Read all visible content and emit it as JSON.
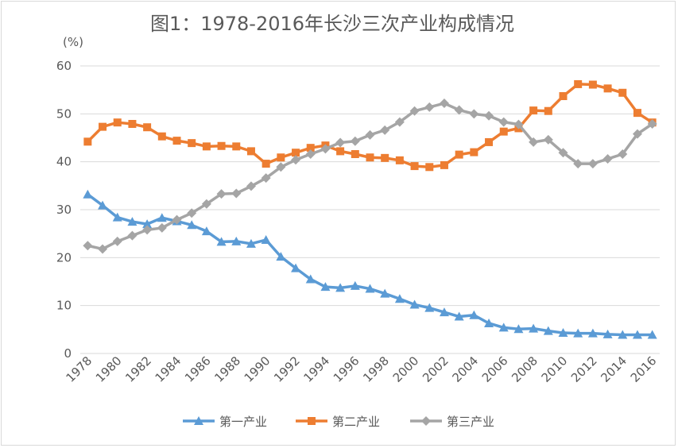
{
  "chart_data": {
    "type": "line",
    "title": "图1：1978-2016年长沙三次产业构成情况",
    "ylabel": "(%)",
    "xlabel": "",
    "ylim": [
      0,
      60
    ],
    "yticks": [
      0,
      10,
      20,
      30,
      40,
      50,
      60
    ],
    "grid": true,
    "legend_position": "bottom",
    "x": [
      1978,
      1979,
      1980,
      1981,
      1982,
      1983,
      1984,
      1985,
      1986,
      1987,
      1988,
      1989,
      1990,
      1991,
      1992,
      1993,
      1994,
      1995,
      1996,
      1997,
      1998,
      1999,
      2000,
      2001,
      2002,
      2003,
      2004,
      2005,
      2006,
      2007,
      2008,
      2009,
      2010,
      2011,
      2012,
      2013,
      2014,
      2015,
      2016
    ],
    "xtick_labels": [
      "1978",
      "1980",
      "1982",
      "1984",
      "1986",
      "1988",
      "1990",
      "1992",
      "1994",
      "1996",
      "1998",
      "2000",
      "2002",
      "2004",
      "2006",
      "2008",
      "2010",
      "2012",
      "2014",
      "2016"
    ],
    "series": [
      {
        "name": "第一产业",
        "color": "#5b9bd5",
        "marker": "triangle",
        "values": [
          33.2,
          30.9,
          28.4,
          27.5,
          27.0,
          28.3,
          27.6,
          26.8,
          25.5,
          23.3,
          23.4,
          22.9,
          23.7,
          20.2,
          17.8,
          15.5,
          13.9,
          13.7,
          14.1,
          13.5,
          12.5,
          11.4,
          10.2,
          9.5,
          8.6,
          7.7,
          8.0,
          6.3,
          5.4,
          5.1,
          5.2,
          4.7,
          4.3,
          4.2,
          4.2,
          4.0,
          3.9,
          3.9,
          3.9
        ]
      },
      {
        "name": "第二产业",
        "color": "#ed7d31",
        "marker": "square",
        "values": [
          44.2,
          47.3,
          48.2,
          47.9,
          47.2,
          45.3,
          44.4,
          43.9,
          43.2,
          43.3,
          43.2,
          42.2,
          39.6,
          40.9,
          41.9,
          42.9,
          43.4,
          42.2,
          41.6,
          40.9,
          40.8,
          40.3,
          39.1,
          38.9,
          39.3,
          41.5,
          42.0,
          44.1,
          46.3,
          47.0,
          50.7,
          50.6,
          53.7,
          56.2,
          56.1,
          55.3,
          54.4,
          50.2,
          48.2
        ]
      },
      {
        "name": "第三产业",
        "color": "#a5a5a5",
        "marker": "diamond",
        "values": [
          22.5,
          21.8,
          23.4,
          24.6,
          25.8,
          26.2,
          27.9,
          29.3,
          31.2,
          33.3,
          33.4,
          34.9,
          36.6,
          38.9,
          40.4,
          41.6,
          42.7,
          44.0,
          44.3,
          45.6,
          46.6,
          48.3,
          50.6,
          51.4,
          52.2,
          50.8,
          50.0,
          49.6,
          48.3,
          47.8,
          44.1,
          44.6,
          41.9,
          39.6,
          39.6,
          40.6,
          41.6,
          45.8,
          47.9
        ]
      }
    ]
  }
}
